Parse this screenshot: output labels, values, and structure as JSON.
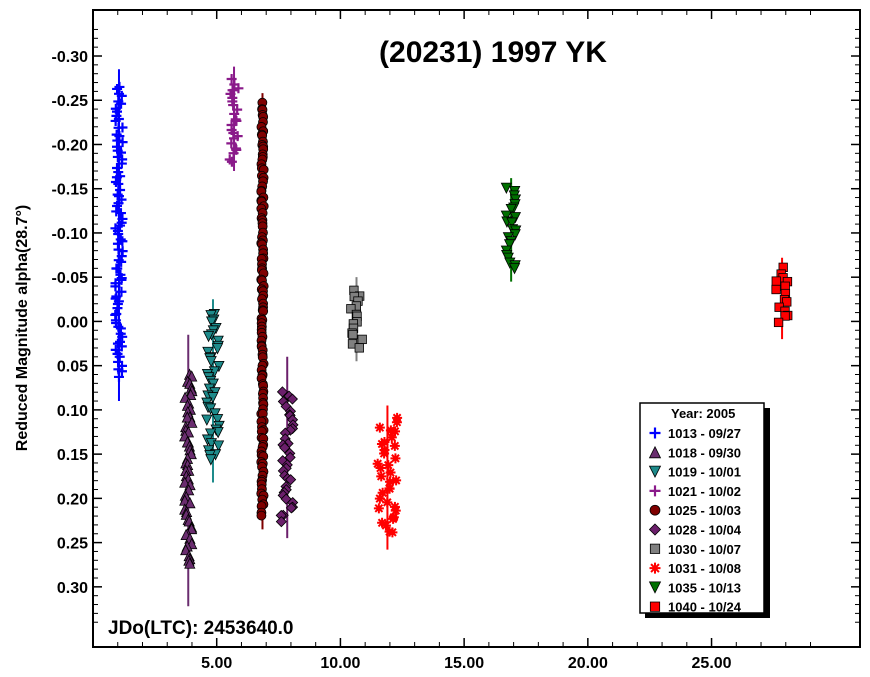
{
  "chart_data": {
    "type": "scatter",
    "title": "(20231) 1997 YK",
    "xlabel": "",
    "ylabel": "Reduced Magnitude alpha(28.7°)",
    "annotation": "JDo(LTC): 2453640.0",
    "xlim": [
      0.0,
      31.0
    ],
    "ylim": [
      0.368,
      -0.352
    ],
    "x_ticks": [
      5,
      10,
      15,
      20,
      25
    ],
    "x_tick_labels": [
      "5.00",
      "10.00",
      "15.00",
      "20.00",
      "25.00"
    ],
    "y_ticks": [
      -0.3,
      -0.25,
      -0.2,
      -0.15,
      -0.1,
      -0.05,
      0.0,
      0.05,
      0.1,
      0.15,
      0.2,
      0.25,
      0.3
    ],
    "y_tick_labels": [
      "-0.30",
      "-0.25",
      "-0.20",
      "-0.15",
      "-0.10",
      "-0.05",
      "0.00",
      "0.05",
      "0.10",
      "0.15",
      "0.20",
      "0.25",
      "0.30"
    ],
    "grid": false,
    "legend": {
      "title": "Year: 2005",
      "placement": "bottom-right"
    },
    "series": [
      {
        "name": "1013 - 09/27",
        "color": "#0000ff",
        "marker": "plus",
        "x_start": 0.9,
        "x_end": 1.2,
        "y_top": -0.265,
        "y_bottom": 0.062,
        "err_top": -0.285,
        "err_bottom": 0.09
      },
      {
        "name": "1018 - 09/30",
        "color": "#6a2d6f",
        "marker": "triangle-up",
        "x_start": 3.7,
        "x_end": 4.0,
        "y_top": 0.058,
        "y_bottom": 0.275,
        "err_top": 0.015,
        "err_bottom": 0.322
      },
      {
        "name": "1019 - 10/01",
        "color": "#1e8b8b",
        "marker": "triangle-down",
        "x_start": 4.6,
        "x_end": 5.1,
        "y_top": -0.01,
        "y_bottom": 0.158,
        "err_top": -0.025,
        "err_bottom": 0.182
      },
      {
        "name": "1021 - 10/02",
        "color": "#8a1a8a",
        "marker": "plus",
        "x_start": 5.5,
        "x_end": 5.9,
        "y_top": -0.272,
        "y_bottom": -0.18,
        "err_top": -0.288,
        "err_bottom": -0.17
      },
      {
        "name": "1025 - 10/03",
        "color": "#7f0000",
        "marker": "circle",
        "x_start": 6.8,
        "x_end": 6.9,
        "y_top": -0.245,
        "y_bottom": 0.218,
        "err_top": -0.258,
        "err_bottom": 0.235
      },
      {
        "name": "1028 - 10/04",
        "color": "#6b1f6b",
        "marker": "diamond",
        "x_start": 7.6,
        "x_end": 8.1,
        "y_top": 0.08,
        "y_bottom": 0.225,
        "err_top": 0.04,
        "err_bottom": 0.245
      },
      {
        "name": "1030 - 10/07",
        "color": "#808080",
        "marker": "square",
        "x_start": 10.4,
        "x_end": 10.9,
        "y_top": -0.035,
        "y_bottom": 0.03,
        "err_top": -0.05,
        "err_bottom": 0.045
      },
      {
        "name": "1031 - 10/08",
        "color": "#ff0000",
        "marker": "asterisk",
        "x_start": 11.5,
        "x_end": 12.3,
        "y_top": 0.11,
        "y_bottom": 0.24,
        "err_top": 0.095,
        "err_bottom": 0.258
      },
      {
        "name": "1035 - 10/13",
        "color": "#007000",
        "marker": "triangle-down",
        "x_start": 16.7,
        "x_end": 17.1,
        "y_top": -0.15,
        "y_bottom": -0.06,
        "err_top": -0.162,
        "err_bottom": -0.045
      },
      {
        "name": "1040 - 10/24",
        "color": "#ff0000",
        "marker": "square",
        "x_start": 27.6,
        "x_end": 28.1,
        "y_top": -0.06,
        "y_bottom": 0.0,
        "err_top": -0.072,
        "err_bottom": 0.02
      }
    ]
  }
}
